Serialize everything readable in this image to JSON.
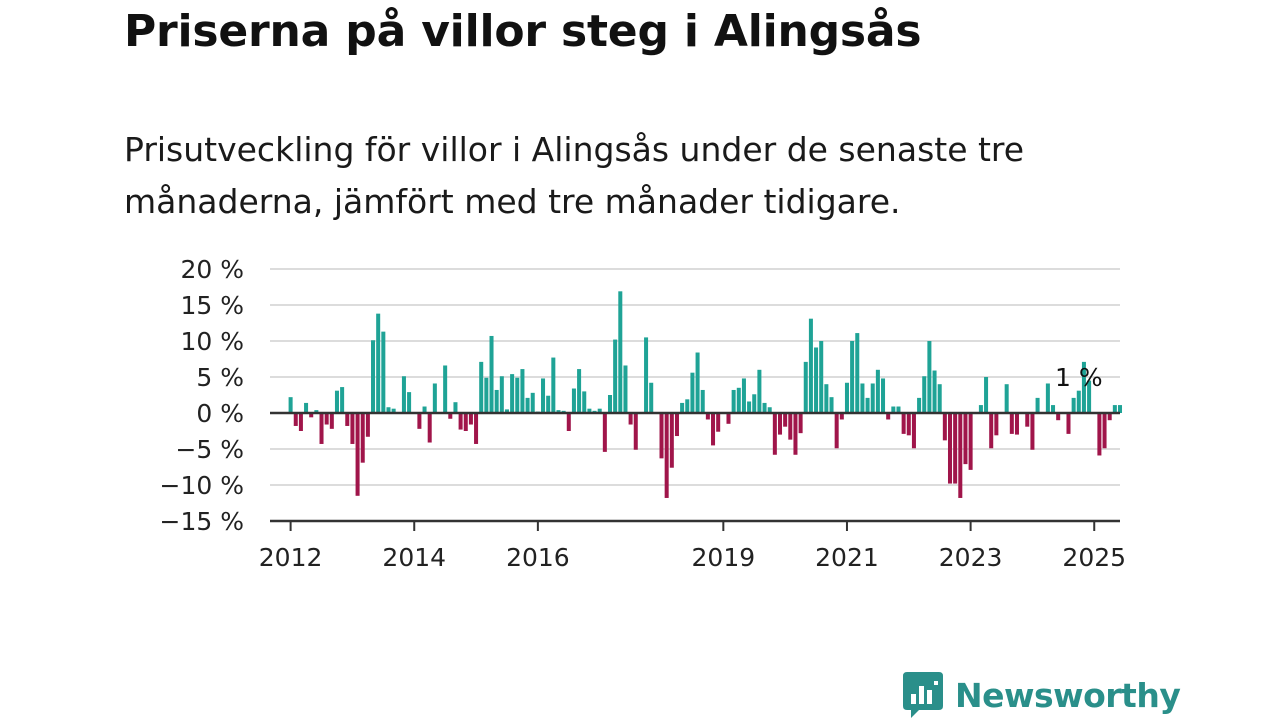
{
  "title": "Priserna på villor steg i Alingsås",
  "subtitle": "Prisutveckling för villor i Alingsås under de senaste tre månaderna, jämfört med tre månader tidigare.",
  "colors": {
    "positive": "#1fa396",
    "negative": "#a0154a",
    "grid": "#dcdcdc",
    "axis": "#333333"
  },
  "annotation": "1 %",
  "brand": {
    "name": "Newsworthy",
    "icon": "bar-chart-bubble-icon",
    "color": "#2a8f8a"
  },
  "chart_data": {
    "type": "bar",
    "title": "",
    "xlabel": "",
    "ylabel": "",
    "ylim": [
      -15,
      20
    ],
    "yticks": [
      20,
      15,
      10,
      5,
      0,
      -5,
      -10,
      -15
    ],
    "ytick_labels": [
      "20 %",
      "15 %",
      "10 %",
      "5 %",
      "0 %",
      "−5 %",
      "−10 %",
      "−15 %"
    ],
    "xlim": [
      "2011-09",
      "2025-06"
    ],
    "xticks": [
      "2012",
      "2014",
      "2016",
      "2019",
      "2021",
      "2023",
      "2025"
    ],
    "grid": true,
    "legend": "none",
    "start_month": "2012-01",
    "values": [
      2.2,
      -1.8,
      -2.5,
      1.4,
      -0.6,
      0.4,
      -4.3,
      -1.6,
      -2.2,
      3.1,
      3.6,
      -1.8,
      -4.3,
      -11.5,
      -6.9,
      -3.3,
      10.1,
      13.8,
      11.3,
      0.8,
      0.6,
      0,
      5.1,
      2.9,
      0,
      -2.2,
      0.9,
      -4.1,
      4.1,
      0,
      6.6,
      -0.8,
      1.5,
      -2.3,
      -2.5,
      -1.6,
      -4.3,
      7.1,
      4.9,
      10.7,
      3.2,
      5.1,
      0.5,
      5.4,
      4.9,
      6.1,
      2.1,
      2.8,
      0.2,
      4.8,
      2.4,
      7.7,
      0.4,
      0.3,
      -2.5,
      3.4,
      6.1,
      3,
      0.6,
      0.3,
      0.6,
      -5.4,
      2.5,
      10.2,
      16.9,
      6.6,
      -1.6,
      -5.1,
      0,
      10.5,
      4.2,
      0,
      -6.3,
      -11.8,
      -7.6,
      -3.2,
      1.4,
      1.9,
      5.6,
      8.4,
      3.2,
      -0.9,
      -4.5,
      -2.6,
      0,
      -1.5,
      3.2,
      3.5,
      4.8,
      1.6,
      2.6,
      6,
      1.4,
      0.8,
      -5.8,
      -3,
      -1.9,
      -3.7,
      -5.8,
      -2.8,
      7.1,
      13.1,
      9.1,
      10,
      4,
      2.2,
      -4.9,
      -0.9,
      4.2,
      10,
      11.1,
      4.1,
      2.1,
      4.1,
      6,
      4.8,
      -0.9,
      0.9,
      0.9,
      -2.9,
      -3.1,
      -4.9,
      2.1,
      5.1,
      10,
      5.9,
      4,
      -3.8,
      -9.8,
      -9.8,
      -11.8,
      -7.1,
      -7.9,
      0,
      1.1,
      5,
      -4.9,
      -3.1,
      0,
      4,
      -2.9,
      -3,
      0,
      -1.9,
      -5.1,
      2.1,
      0,
      4.1,
      1.1,
      -1,
      0,
      -2.9,
      2.1,
      3.1,
      7.1,
      4.5,
      0,
      -5.9,
      -4.9,
      -1,
      1.1,
      1.1
    ]
  }
}
